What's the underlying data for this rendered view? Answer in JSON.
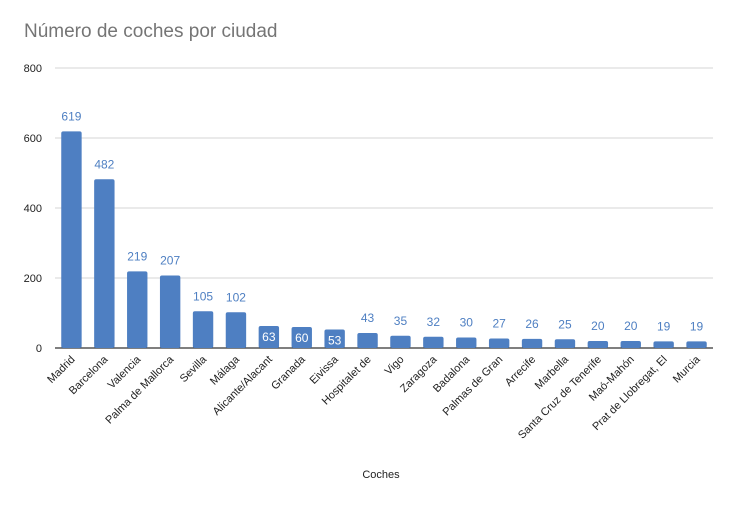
{
  "chart_data": {
    "type": "bar",
    "title": "Número de coches por ciudad",
    "xlabel": "Coches",
    "ylabel": "",
    "ylim": [
      0,
      800
    ],
    "yticks": [
      0,
      200,
      400,
      600,
      800
    ],
    "grid": true,
    "legend": "none",
    "categories": [
      "Madrid",
      "Barcelona",
      "Valencia",
      "Palma de Mallorca",
      "Sevilla",
      "Málaga",
      "Alicante/Alacant",
      "Granada",
      "Eivissa",
      "Hospitalet de",
      "Vigo",
      "Zaragoza",
      "Badalona",
      "Palmas de Gran",
      "Arrecife",
      "Marbella",
      "Santa Cruz de Tenerife",
      "Maó-Mahón",
      "Prat de Llobregat, El",
      "Murcia"
    ],
    "values": [
      619,
      482,
      219,
      207,
      105,
      102,
      63,
      60,
      53,
      43,
      35,
      32,
      30,
      27,
      26,
      25,
      20,
      20,
      19,
      19
    ],
    "colors": {
      "bar": "#4e7fc2",
      "label_outside": "#4e7fc2",
      "label_inside": "#ffffff",
      "grid": "#d4d4d4",
      "axis": "#333333",
      "title": "#757575"
    }
  }
}
